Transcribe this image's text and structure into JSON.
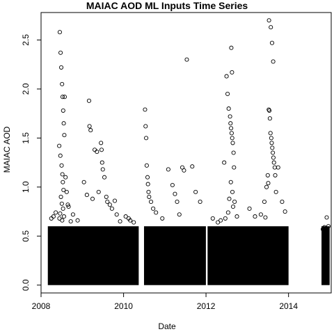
{
  "chart_data": {
    "type": "scatter",
    "title": "MAIAC AOD ML Inputs Time Series",
    "xlabel": "Date",
    "ylabel": "MAIAC AOD",
    "xlim": [
      "2008-01-01",
      "2015-01-14"
    ],
    "ylim": [
      -0.08,
      2.78
    ],
    "x_ticks": [
      "2008",
      "2010",
      "2012",
      "2014"
    ],
    "x_tick_values": [
      "2008-01-01",
      "2010-01-01",
      "2012-01-01",
      "2014-01-01"
    ],
    "y_ticks": [
      "0.0",
      "0.5",
      "1.0",
      "1.5",
      "2.0",
      "2.5"
    ],
    "y_tick_values": [
      0.0,
      0.5,
      1.0,
      1.5,
      2.0,
      2.5
    ],
    "grid": false,
    "marker": "open-circle",
    "marker_color": "#000000",
    "dense_band": {
      "description": "daily values overlap into a solid band",
      "y_range": [
        0.0,
        0.6
      ],
      "periods": [
        [
          "2008-03-01",
          "2010-05-15"
        ],
        [
          "2010-07-01",
          "2011-12-31"
        ],
        [
          "2012-01-15",
          "2014-01-01"
        ],
        [
          "2014-10-20",
          "2014-12-31"
        ]
      ]
    },
    "series": [
      {
        "x": [
          "2008-06-15",
          "2008-06-22",
          "2008-06-28",
          "2008-07-05",
          "2008-07-10",
          "2008-07-15",
          "2008-07-20",
          "2008-07-25",
          "2008-06-10",
          "2008-06-20",
          "2008-07-01",
          "2008-07-08",
          "2008-07-12",
          "2008-07-18",
          "2008-06-25",
          "2008-07-03",
          "2008-07-14",
          "2008-06-18",
          "2008-07-22",
          "2008-06-12",
          "2008-07-06",
          "2008-07-28",
          "2008-08-05",
          "2008-08-15",
          "2008-09-01",
          "2008-10-10",
          "2008-05-10",
          "2008-04-20",
          "2008-04-01",
          "2008-11-20",
          "2008-09-20",
          "2008-08-25",
          "2009-01-15",
          "2009-02-10",
          "2009-03-01",
          "2009-03-05",
          "2009-03-15",
          "2009-04-20",
          "2009-05-10",
          "2009-06-15",
          "2009-06-20",
          "2009-06-25",
          "2009-07-01",
          "2009-07-15",
          "2009-08-01",
          "2009-08-10",
          "2009-05-25",
          "2009-09-01",
          "2009-09-20",
          "2009-04-01",
          "2009-10-15",
          "2009-11-01",
          "2009-12-01",
          "2010-01-20",
          "2010-02-15",
          "2010-03-01",
          "2010-04-01",
          "2010-07-10",
          "2010-07-15",
          "2010-07-20",
          "2010-07-25",
          "2010-08-01",
          "2010-08-05",
          "2010-08-10",
          "2010-08-15",
          "2010-09-01",
          "2010-09-20",
          "2010-10-15",
          "2010-12-10",
          "2011-02-01",
          "2011-03-10",
          "2011-04-01",
          "2011-04-20",
          "2011-05-10",
          "2011-06-05",
          "2011-06-20",
          "2011-07-15",
          "2011-09-01",
          "2011-10-01",
          "2011-11-10",
          "2012-03-01",
          "2012-06-10",
          "2012-07-01",
          "2012-07-10",
          "2012-07-20",
          "2012-08-01",
          "2012-08-05",
          "2012-08-10",
          "2012-08-15",
          "2012-08-20",
          "2012-08-25",
          "2012-09-01",
          "2012-09-05",
          "2012-08-12",
          "2012-08-18",
          "2012-08-08",
          "2012-08-22",
          "2012-07-25",
          "2012-08-28",
          "2012-07-15",
          "2012-09-10",
          "2012-10-01",
          "2012-06-20",
          "2012-05-10",
          "2012-04-15",
          "2013-01-20",
          "2013-03-10",
          "2013-05-01",
          "2013-06-01",
          "2013-06-20",
          "2013-07-01",
          "2013-07-10",
          "2013-07-15",
          "2013-07-20",
          "2013-07-25",
          "2013-08-01",
          "2013-08-05",
          "2013-08-10",
          "2013-08-15",
          "2013-08-20",
          "2013-08-25",
          "2013-09-01",
          "2013-09-05",
          "2013-07-12",
          "2013-07-28",
          "2013-08-08",
          "2013-08-18",
          "2013-07-05",
          "2013-09-12",
          "2013-10-01",
          "2013-11-05",
          "2013-12-01",
          "2013-06-10",
          "2014-11-15",
          "2014-12-05",
          "2014-12-20",
          "2014-11-01"
        ],
        "y": [
          2.58,
          2.37,
          2.22,
          2.05,
          1.92,
          1.78,
          1.65,
          1.53,
          1.42,
          1.32,
          1.22,
          1.13,
          1.05,
          0.97,
          0.9,
          0.83,
          0.78,
          0.73,
          0.7,
          0.68,
          0.66,
          1.92,
          1.1,
          0.95,
          0.8,
          0.72,
          0.74,
          0.7,
          0.68,
          0.66,
          0.65,
          0.82,
          1.05,
          0.92,
          1.88,
          1.62,
          1.58,
          1.38,
          1.36,
          1.45,
          1.38,
          1.25,
          1.18,
          1.1,
          0.9,
          0.85,
          0.95,
          0.82,
          0.78,
          0.88,
          0.86,
          0.72,
          0.65,
          0.7,
          0.68,
          0.66,
          0.64,
          1.79,
          1.62,
          1.5,
          1.22,
          1.1,
          1.03,
          0.95,
          0.9,
          0.85,
          0.78,
          0.74,
          0.68,
          1.18,
          1.02,
          0.93,
          0.85,
          0.72,
          1.2,
          1.17,
          2.3,
          1.21,
          0.95,
          0.85,
          0.68,
          1.25,
          2.13,
          1.95,
          1.8,
          1.72,
          1.65,
          1.6,
          1.55,
          1.5,
          1.45,
          1.35,
          1.2,
          2.42,
          2.17,
          1.05,
          0.95,
          0.88,
          0.8,
          0.74,
          0.85,
          0.7,
          0.68,
          0.66,
          0.64,
          0.78,
          0.7,
          0.72,
          0.85,
          1.0,
          1.12,
          1.79,
          1.78,
          1.7,
          1.55,
          1.5,
          1.45,
          1.4,
          1.35,
          1.3,
          1.25,
          1.2,
          1.12,
          2.7,
          2.63,
          2.47,
          2.28,
          1.04,
          0.95,
          1.2,
          0.85,
          0.75,
          0.69,
          0.59,
          0.69,
          0.6,
          0.57
        ]
      }
    ]
  }
}
